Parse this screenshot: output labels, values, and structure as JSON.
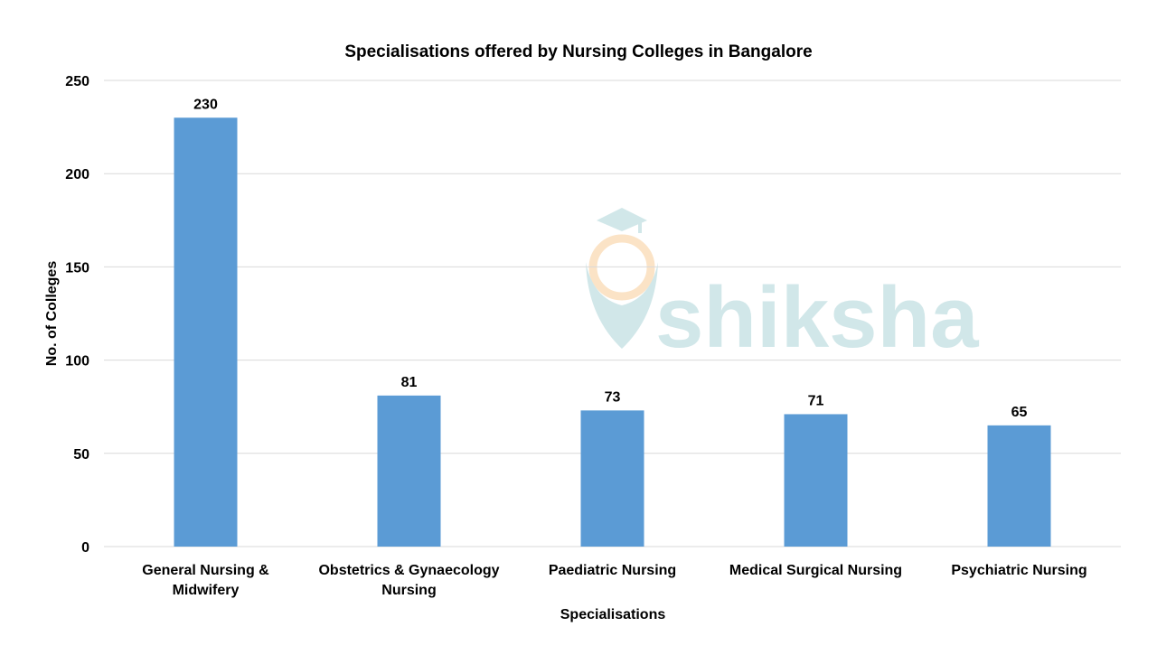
{
  "chart_data": {
    "type": "bar",
    "title": "Specialisations offered by Nursing Colleges in Bangalore",
    "xlabel": "Specialisations",
    "ylabel": "No. of Colleges",
    "categories": [
      [
        "General Nursing &",
        "Midwifery"
      ],
      [
        "Obstetrics & Gynaecology",
        "Nursing"
      ],
      [
        "Paediatric Nursing"
      ],
      [
        "Medical Surgical Nursing"
      ],
      [
        "Psychiatric Nursing"
      ]
    ],
    "values": [
      230,
      81,
      73,
      71,
      65
    ],
    "data_labels": [
      "230",
      "81",
      "73",
      "71",
      "65"
    ],
    "ylim": [
      0,
      250
    ],
    "yticks": [
      0,
      50,
      100,
      150,
      200,
      250
    ],
    "grid": true,
    "legend": "none",
    "bar_color": "#5b9bd5",
    "gridline_color": "#d9d9d9"
  },
  "watermark": {
    "text": "shiksha",
    "colors": [
      "#cfe6e8",
      "#fbe2c4"
    ]
  }
}
